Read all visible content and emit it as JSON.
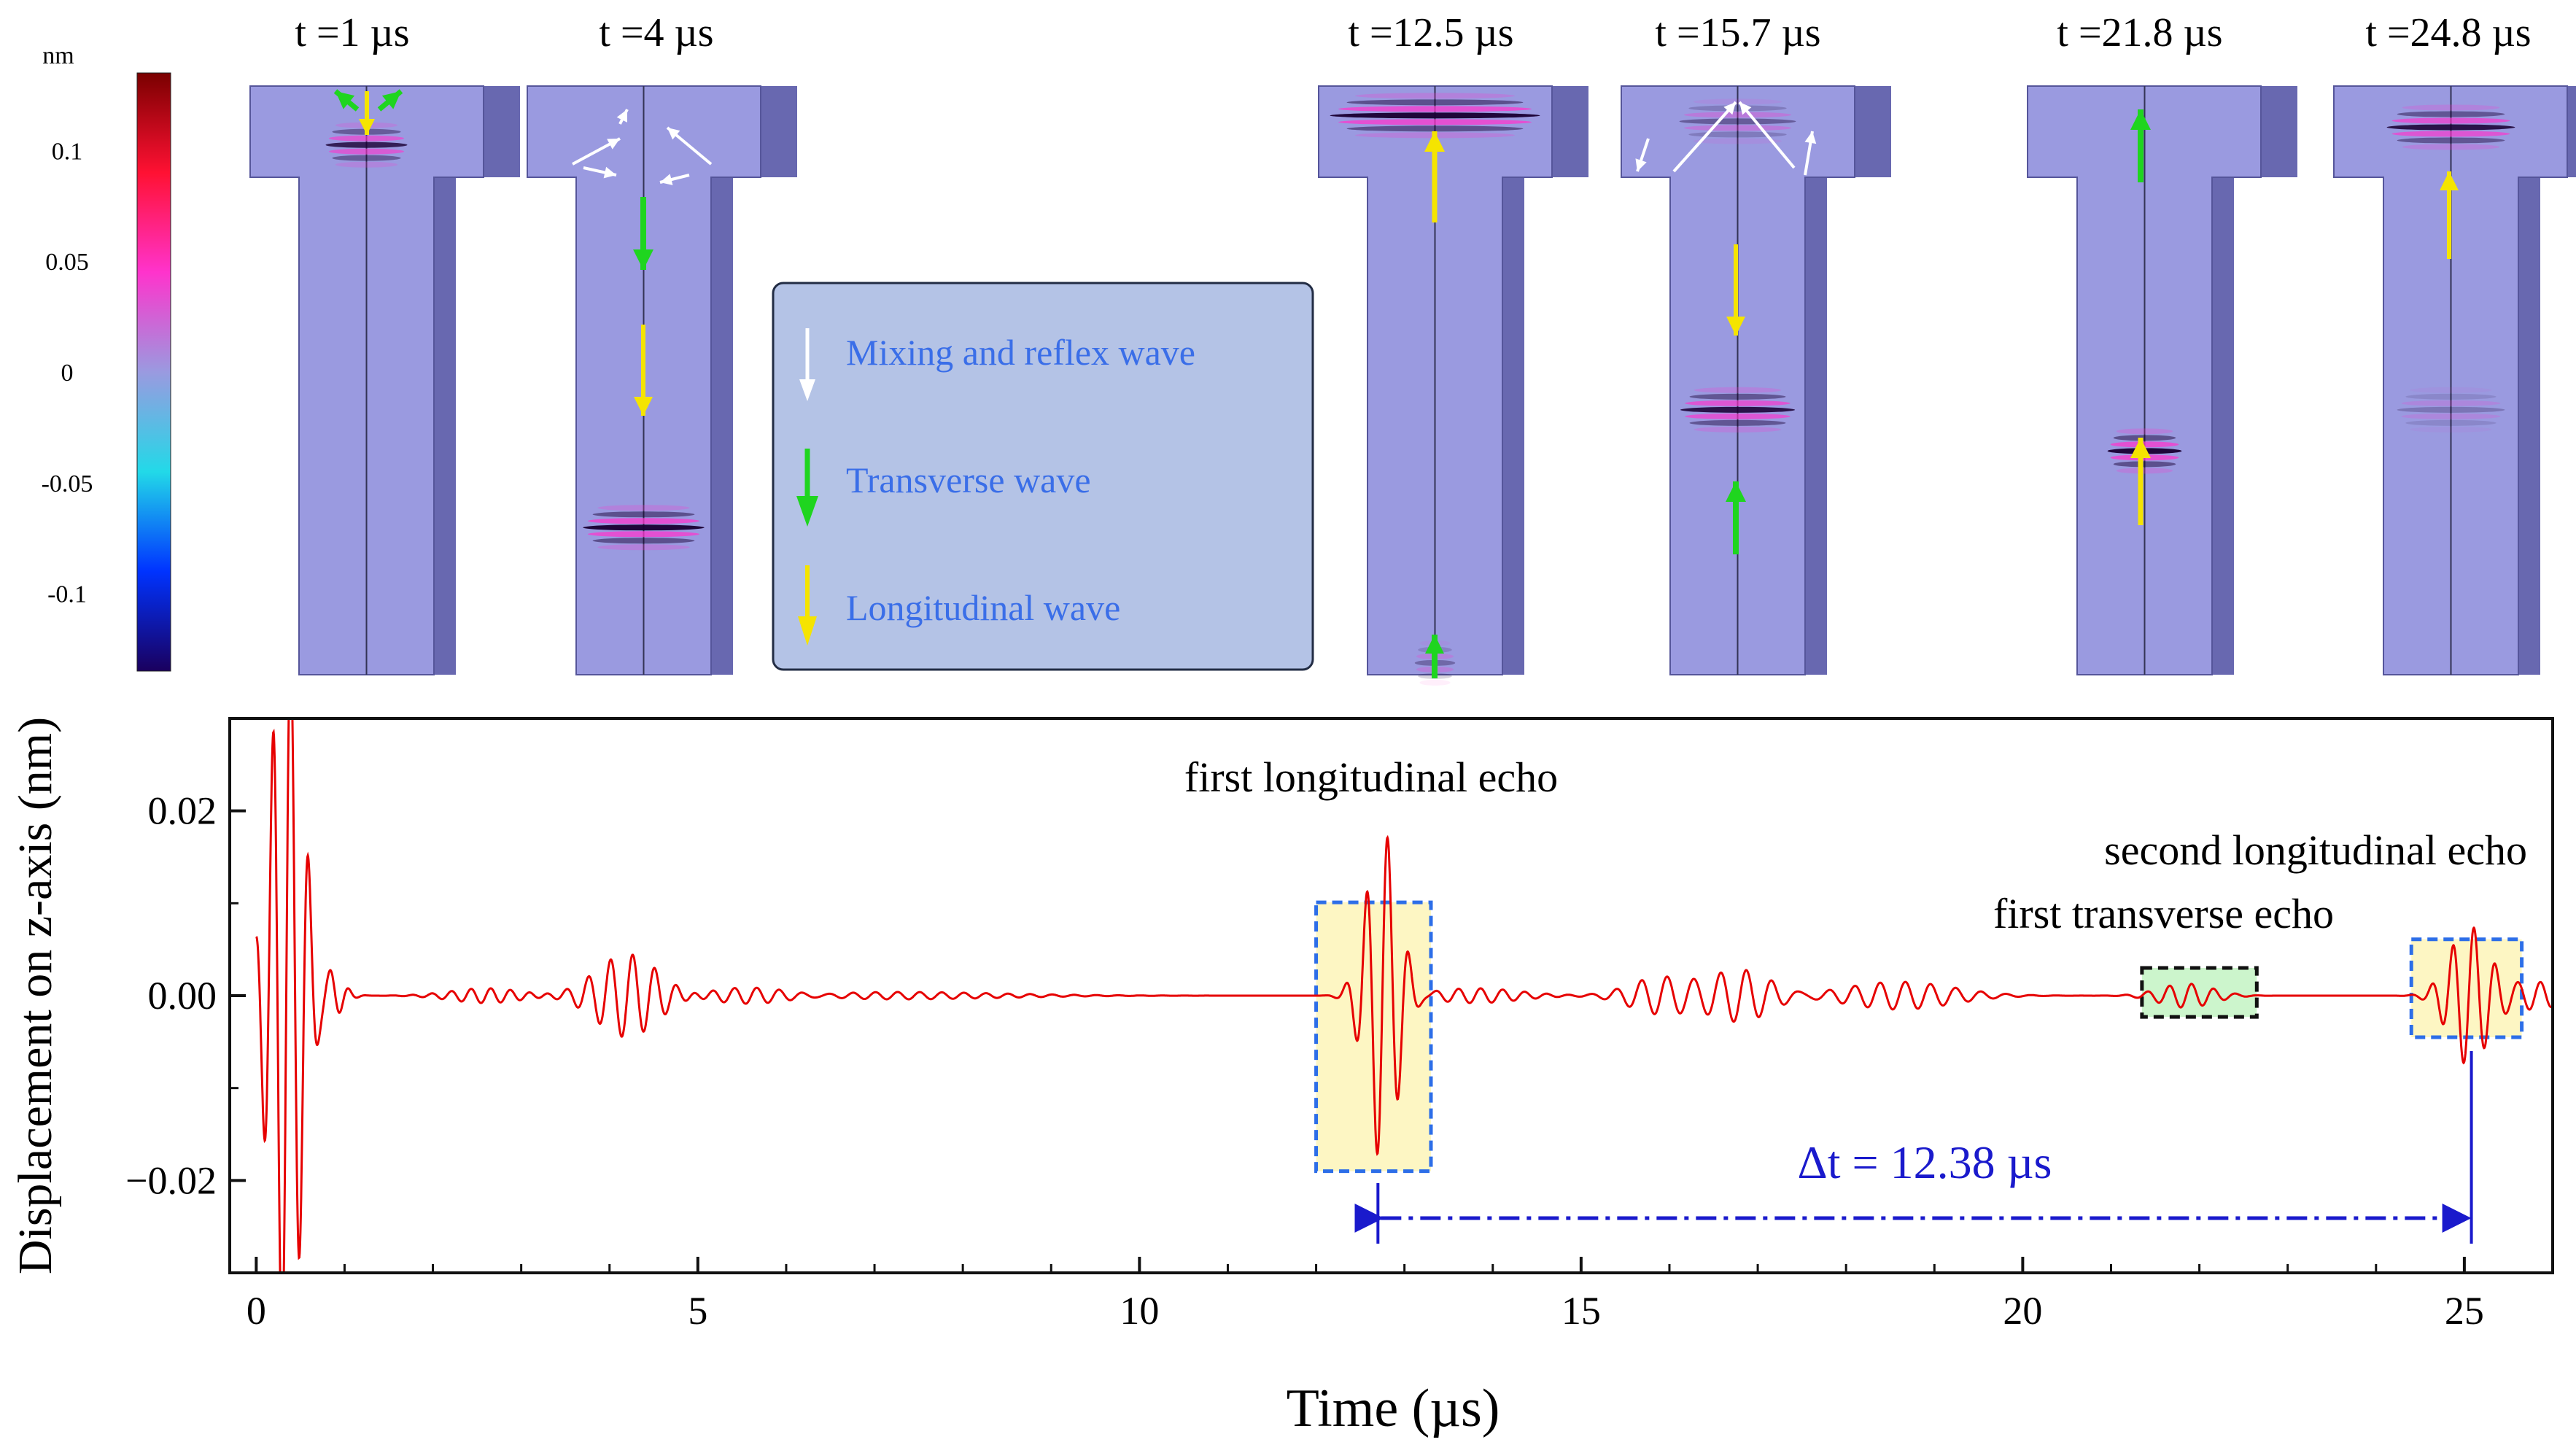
{
  "colorbar": {
    "unit": "nm",
    "ticks": [
      {
        "label": "0.1",
        "value": 0.1
      },
      {
        "label": "0.05",
        "value": 0.05
      },
      {
        "label": "0",
        "value": 0
      },
      {
        "label": "-0.05",
        "value": -0.05
      },
      {
        "label": "-0.1",
        "value": -0.1
      }
    ],
    "range": [
      -0.135,
      0.135
    ],
    "colors": [
      "#1a005e",
      "#0033ff",
      "#22d9e8",
      "#9a9ae0",
      "#ff33cc",
      "#ff1133",
      "#7a0000"
    ]
  },
  "snapshots": [
    {
      "label": "t =1 µs"
    },
    {
      "label": "t =4 µs"
    },
    {
      "label": "t =12.5 µs"
    },
    {
      "label": "t =15.7 µs"
    },
    {
      "label": "t =21.8 µs"
    },
    {
      "label": "t =24.8 µs"
    }
  ],
  "legend": {
    "items": [
      {
        "label": "Mixing and reflex wave",
        "color": "#ffffff"
      },
      {
        "label": "Transverse wave",
        "color": "#1fd51f"
      },
      {
        "label": "Longitudinal wave",
        "color": "#f5e400"
      }
    ]
  },
  "chart_data": {
    "type": "line",
    "xlabel": "Time (µs)",
    "ylabel": "Displacement on z-axis (nm)",
    "xlim": [
      -0.3,
      26
    ],
    "ylim": [
      -0.03,
      0.03
    ],
    "xticks": [
      0,
      5,
      10,
      15,
      20,
      25
    ],
    "yticks": [
      {
        "value": 0.02,
        "label": "0.02"
      },
      {
        "value": 0,
        "label": "0.00"
      },
      {
        "value": -0.02,
        "label": "−0.02"
      }
    ],
    "series": [
      {
        "color": "#e60000"
      }
    ],
    "packets": [
      {
        "t0": 0.34,
        "amp": 0.04,
        "sigma": 0.18,
        "freq": 5.0
      },
      {
        "t0": 0.8,
        "amp": 0.003,
        "sigma": 0.15,
        "freq": 5.0
      },
      {
        "t0": 2.6,
        "amp": 0.0008,
        "sigma": 0.4,
        "freq": 4.5
      },
      {
        "t0": 4.2,
        "amp": 0.0045,
        "sigma": 0.35,
        "freq": 4.0
      },
      {
        "t0": 5.6,
        "amp": 0.001,
        "sigma": 0.5,
        "freq": 4.0
      },
      {
        "t0": 7.2,
        "amp": 0.0004,
        "sigma": 1.2,
        "freq": 4.0
      },
      {
        "t0": 12.75,
        "amp": 0.018,
        "sigma": 0.18,
        "freq": 4.2
      },
      {
        "t0": 13.8,
        "amp": 0.0008,
        "sigma": 0.5,
        "freq": 4.0
      },
      {
        "t0": 15.9,
        "amp": 0.002,
        "sigma": 0.35,
        "freq": 3.5
      },
      {
        "t0": 16.8,
        "amp": 0.0028,
        "sigma": 0.35,
        "freq": 3.5
      },
      {
        "t0": 18.6,
        "amp": 0.0015,
        "sigma": 0.6,
        "freq": 3.5
      },
      {
        "t0": 21.85,
        "amp": 0.0013,
        "sigma": 0.3,
        "freq": 4.0
      },
      {
        "t0": 25.05,
        "amp": 0.0075,
        "sigma": 0.22,
        "freq": 4.2
      },
      {
        "t0": 25.8,
        "amp": 0.0015,
        "sigma": 0.3,
        "freq": 4.0
      }
    ],
    "annotations": [
      {
        "text": "first longitudinal echo",
        "x0": 12.0,
        "x1": 13.3,
        "y0": -0.019,
        "y1": 0.0101,
        "fill": "#fdf6c3",
        "border": "#2d6ee8"
      },
      {
        "text": "first transverse echo",
        "x0": 21.35,
        "x1": 22.65,
        "y0": -0.0023,
        "y1": 0.003,
        "fill": "#ccf5cc",
        "border": "#111111"
      },
      {
        "text": "second longitudinal echo",
        "x0": 24.4,
        "x1": 25.65,
        "y0": -0.0045,
        "y1": 0.0061,
        "fill": "#fdf6c3",
        "border": "#2d6ee8"
      }
    ],
    "interval": {
      "text": "Δt = 12.38 µs",
      "from": 12.7,
      "to": 25.08,
      "color": "#1a1acc"
    }
  }
}
